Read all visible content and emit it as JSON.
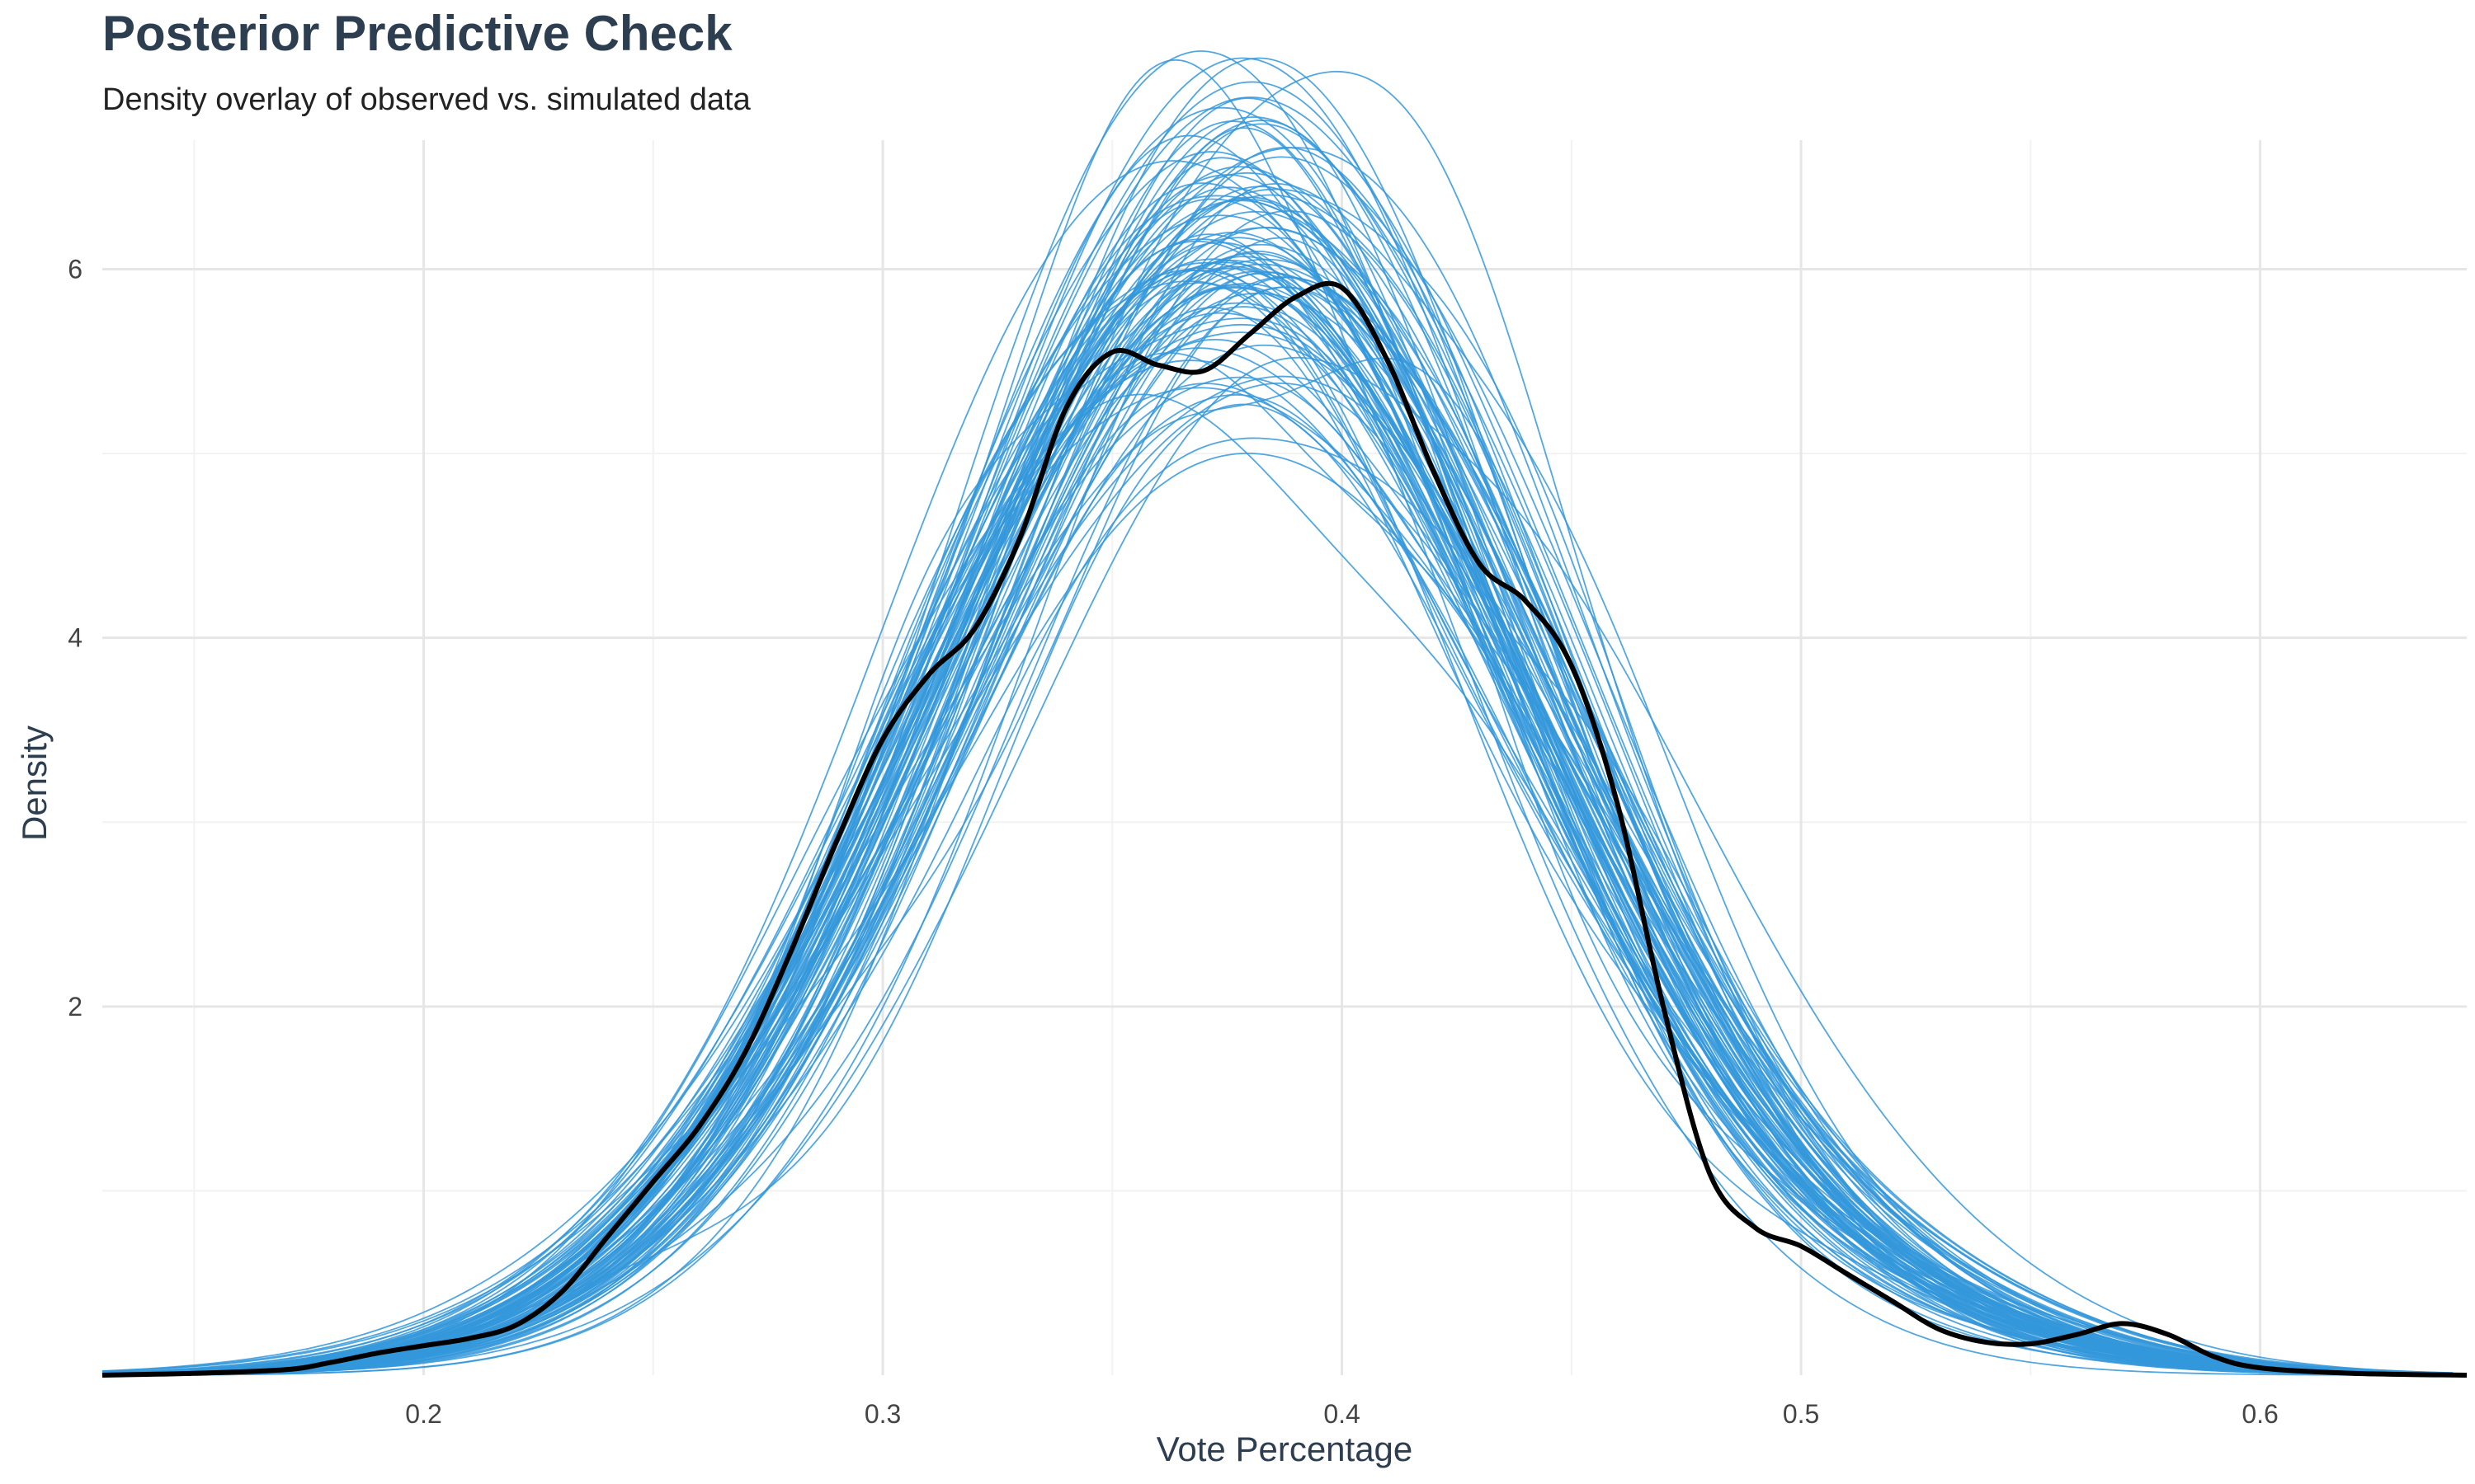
{
  "chart_data": {
    "type": "line",
    "title": "Posterior Predictive Check",
    "subtitle": "Density overlay of observed vs. simulated data",
    "xlabel": "Vote Percentage",
    "ylabel": "Density",
    "xlim": [
      0.13,
      0.645
    ],
    "ylim": [
      0,
      6.7
    ],
    "x_ticks": [
      0.2,
      0.3,
      0.4,
      0.5,
      0.6
    ],
    "y_ticks": [
      2,
      4,
      6
    ],
    "grid": true,
    "legend": "none",
    "colors": {
      "simulated": "#3498db",
      "observed": "#000000"
    },
    "simulated_draws": 100,
    "series": [
      {
        "role": "observed",
        "x": [
          0.13,
          0.15,
          0.17,
          0.18,
          0.19,
          0.2,
          0.21,
          0.22,
          0.23,
          0.24,
          0.25,
          0.26,
          0.27,
          0.28,
          0.29,
          0.3,
          0.31,
          0.32,
          0.33,
          0.34,
          0.35,
          0.36,
          0.37,
          0.38,
          0.39,
          0.4,
          0.41,
          0.42,
          0.43,
          0.44,
          0.45,
          0.46,
          0.47,
          0.48,
          0.49,
          0.5,
          0.51,
          0.52,
          0.53,
          0.54,
          0.55,
          0.56,
          0.57,
          0.58,
          0.59,
          0.6,
          0.62,
          0.645
        ],
        "values": [
          0,
          0.01,
          0.03,
          0.07,
          0.12,
          0.16,
          0.2,
          0.27,
          0.45,
          0.75,
          1.05,
          1.35,
          1.75,
          2.3,
          2.9,
          3.45,
          3.8,
          4.05,
          4.55,
          5.25,
          5.55,
          5.48,
          5.45,
          5.65,
          5.85,
          5.9,
          5.5,
          4.9,
          4.4,
          4.2,
          3.85,
          3.1,
          2.0,
          1.1,
          0.8,
          0.7,
          0.55,
          0.4,
          0.25,
          0.18,
          0.17,
          0.22,
          0.28,
          0.22,
          0.1,
          0.04,
          0.01,
          0
        ]
      }
    ]
  }
}
